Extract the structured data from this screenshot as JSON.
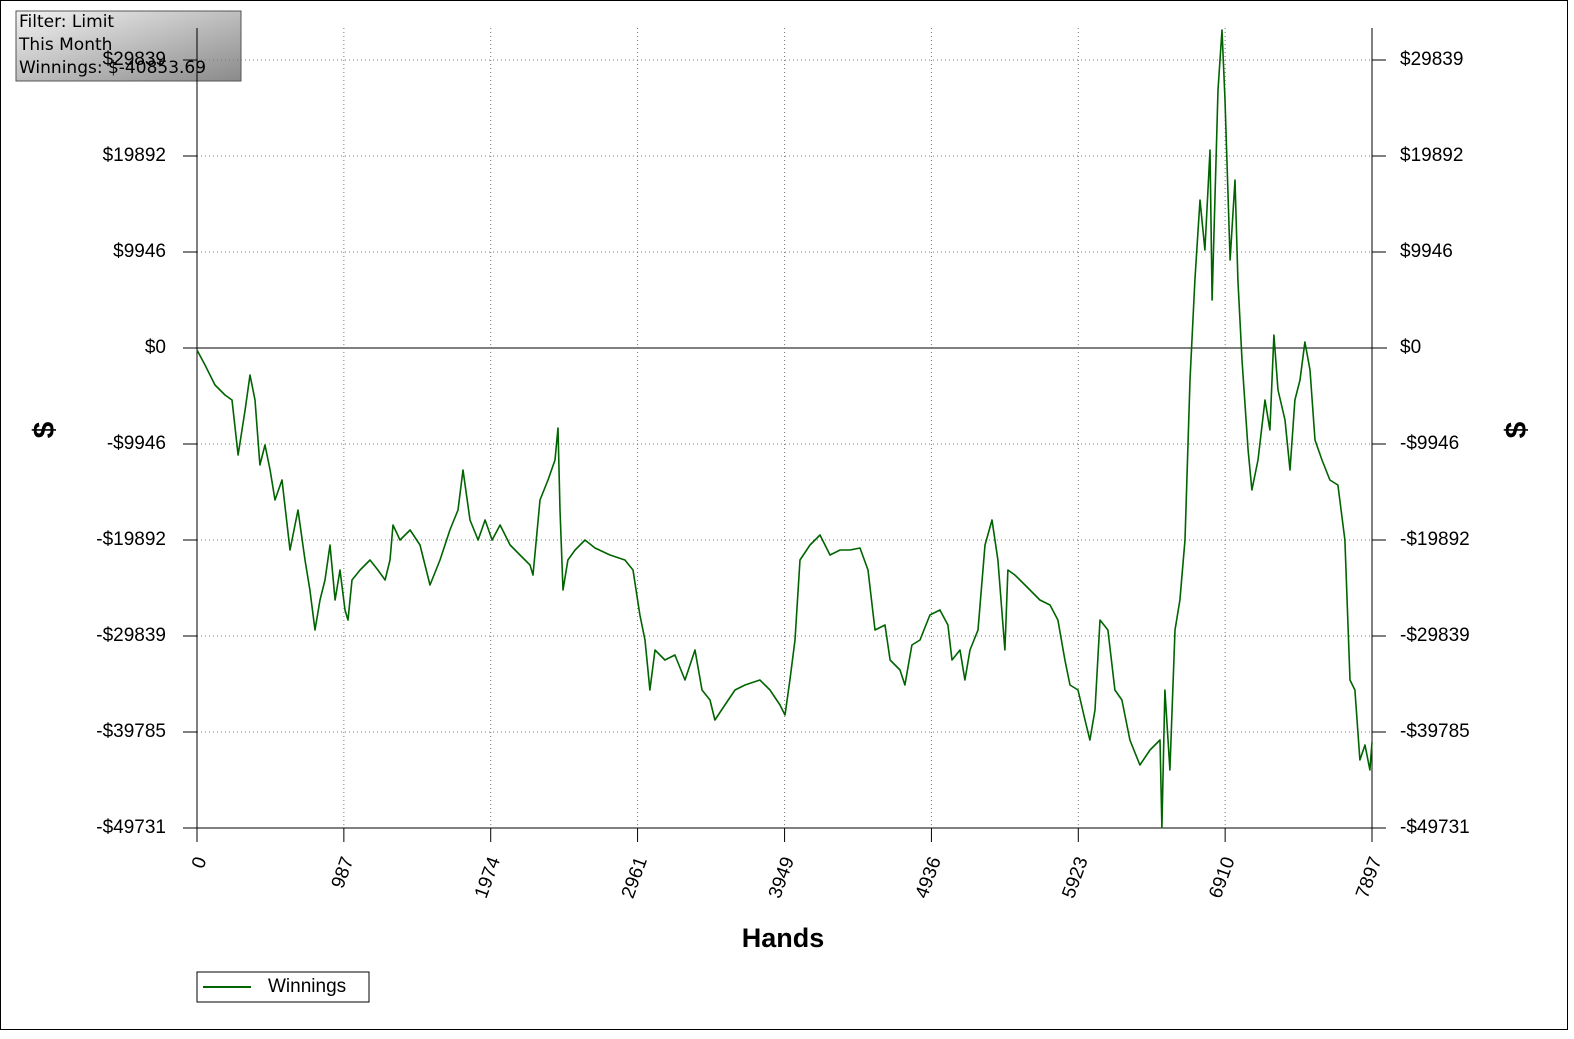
{
  "chart_data": {
    "type": "line",
    "annotations": [
      "Filter: Limit",
      "This Month",
      "Winnings: $-40853.69"
    ],
    "xlabel": "Hands",
    "ylabel": "$",
    "x": [
      0,
      54,
      121,
      188,
      235,
      276,
      323,
      356,
      390,
      423,
      457,
      491,
      524,
      571,
      625,
      679,
      726,
      759,
      793,
      827,
      860,
      894,
      928,
      961,
      995,
      1015,
      1042,
      1096,
      1163,
      1216,
      1264,
      1297,
      1317,
      1364,
      1432,
      1499,
      1566,
      1633,
      1700,
      1754,
      1788,
      1835,
      1889,
      1936,
      1983,
      2037,
      2104,
      2171,
      2238,
      2258,
      2305,
      2359,
      2406,
      2426,
      2440,
      2460,
      2493,
      2541,
      2608,
      2675,
      2776,
      2876,
      2930,
      2977,
      3011,
      3044,
      3078,
      3145,
      3212,
      3280,
      3347,
      3394,
      3448,
      3481,
      3548,
      3616,
      3683,
      3783,
      3851,
      3918,
      3952,
      3985,
      4019,
      4053,
      4120,
      4187,
      4254,
      4322,
      4389,
      4456,
      4510,
      4557,
      4624,
      4658,
      4725,
      4758,
      4805,
      4859,
      4926,
      4993,
      5047,
      5074,
      5128,
      5161,
      5195,
      5249,
      5296,
      5343,
      5383,
      5430,
      5450,
      5497,
      5565,
      5665,
      5733,
      5786,
      5833,
      5867,
      5921,
      5968,
      6001,
      6035,
      6069,
      6122,
      6169,
      6216,
      6270,
      6337,
      6405,
      6472,
      6485,
      6505,
      6539,
      6573,
      6606,
      6640,
      6674,
      6707,
      6741,
      6774,
      6808,
      6822,
      6862,
      6889,
      6909,
      6943,
      6976,
      6996,
      7023,
      7064,
      7090,
      7131,
      7178,
      7211,
      7238,
      7265,
      7312,
      7346,
      7379,
      7413,
      7446,
      7480,
      7514,
      7561,
      7614,
      7668,
      7715,
      7749,
      7782,
      7816,
      7850,
      7883,
      7897
    ],
    "series": [
      {
        "name": "Winnings",
        "color": "#006400",
        "values": [
          -207,
          -1761,
          -3833,
          -4869,
          -5387,
          -11085,
          -6423,
          -2797,
          -5387,
          -12121,
          -10049,
          -12639,
          -15747,
          -13675,
          -20927,
          -16783,
          -21963,
          -25071,
          -29215,
          -26107,
          -24035,
          -20409,
          -26107,
          -22999,
          -27143,
          -28179,
          -24035,
          -22999,
          -21963,
          -22999,
          -24035,
          -21963,
          -18337,
          -19891,
          -18855,
          -20409,
          -24553,
          -21963,
          -18855,
          -16783,
          -12639,
          -17819,
          -19891,
          -17819,
          -19891,
          -18337,
          -20409,
          -21445,
          -22481,
          -23517,
          -15747,
          -13675,
          -11603,
          -8288,
          -16783,
          -25071,
          -21963,
          -20927,
          -19891,
          -20720,
          -21445,
          -21963,
          -22999,
          -27661,
          -30251,
          -35431,
          -31287,
          -32323,
          -31805,
          -34395,
          -31287,
          -35431,
          -36467,
          -38539,
          -36985,
          -35431,
          -34913,
          -34395,
          -35431,
          -36985,
          -38021,
          -34395,
          -30251,
          -21963,
          -20409,
          -19373,
          -21445,
          -20927,
          -20927,
          -20720,
          -22999,
          -29215,
          -28697,
          -32323,
          -33359,
          -34913,
          -30769,
          -30251,
          -27661,
          -27143,
          -28697,
          -32323,
          -31287,
          -34395,
          -31287,
          -29215,
          -20409,
          -17819,
          -21963,
          -31287,
          -22999,
          -23517,
          -24553,
          -26107,
          -26625,
          -28179,
          -32323,
          -34913,
          -35431,
          -38539,
          -40611,
          -37503,
          -28179,
          -29215,
          -35431,
          -36467,
          -40611,
          -43201,
          -41647,
          -40611,
          -49700,
          -35431,
          -43719,
          -29215,
          -26107,
          -19891,
          -3315,
          7045,
          15333,
          10153,
          20513,
          4973,
          26729,
          32945,
          25693,
          9117,
          17405,
          7045,
          -1243,
          -10567,
          -14711,
          -11603,
          -5387,
          -8495,
          1347,
          -4351,
          -7459,
          -12639,
          -5387,
          -3315,
          622,
          -2279,
          -9531,
          -11603,
          -13675,
          -14193,
          -19891,
          -34395,
          -35431,
          -42683,
          -41129,
          -43719,
          -40854
        ]
      }
    ],
    "xlim": [
      0,
      7897
    ],
    "xticks": [
      0,
      987,
      1974,
      2961,
      3949,
      4936,
      5923,
      6910,
      7897
    ],
    "ylim": [
      -49731,
      33154
    ],
    "yticks": [
      {
        "value": 29839,
        "label": "$29839"
      },
      {
        "value": 19892,
        "label": "$19892"
      },
      {
        "value": 9946,
        "label": "$9946"
      },
      {
        "value": 0,
        "label": "$0"
      },
      {
        "value": -9946,
        "label": "-$9946"
      },
      {
        "value": -19892,
        "label": "-$19892"
      },
      {
        "value": -29839,
        "label": "-$29839"
      },
      {
        "value": -39785,
        "label": "-$39785"
      },
      {
        "value": -49731,
        "label": "-$49731"
      }
    ],
    "grid": true,
    "legend": "bottom-left"
  }
}
